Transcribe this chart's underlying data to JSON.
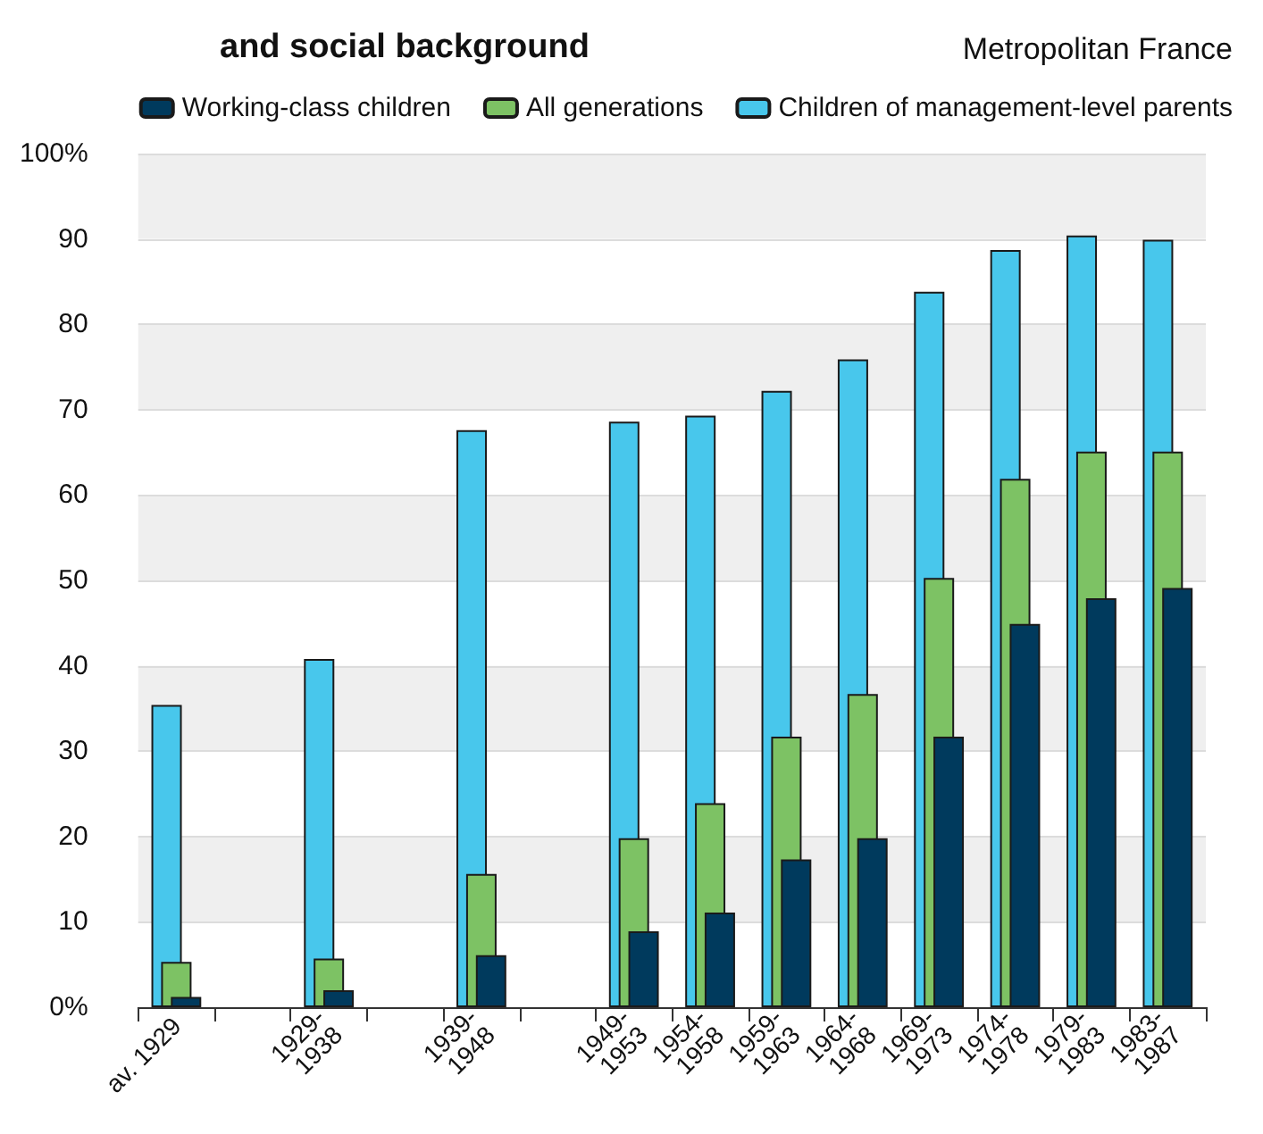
{
  "chart_data": {
    "type": "bar",
    "title": "and social background",
    "subtitle": "Metropolitan France",
    "categories": [
      "av. 1929",
      null,
      "1929-1938",
      null,
      "1939-1948",
      null,
      "1949-1953",
      "1954-1958",
      "1959-1963",
      "1964-1968",
      "1969-1973",
      "1974-1978",
      "1979-1983",
      "1983-1987"
    ],
    "series": [
      {
        "name": "Working-class children",
        "color": "#003a5d",
        "values": [
          1.2,
          null,
          2.0,
          null,
          6.1,
          null,
          8.9,
          11.1,
          17.3,
          19.8,
          31.7,
          44.9,
          47.9,
          49.1
        ]
      },
      {
        "name": "All generations",
        "color": "#7dc264",
        "values": [
          5.3,
          null,
          5.7,
          null,
          15.6,
          null,
          19.8,
          23.9,
          31.7,
          36.7,
          50.3,
          61.9,
          65.1,
          65.1
        ]
      },
      {
        "name": "Children of management-level parents",
        "color": "#48c7ec",
        "values": [
          35.4,
          null,
          40.8,
          null,
          67.6,
          null,
          68.6,
          69.3,
          72.2,
          75.9,
          83.8,
          88.7,
          90.4,
          89.9
        ]
      }
    ],
    "ylim": [
      0,
      100
    ],
    "yticks": [
      {
        "value": 0,
        "label": "0%"
      },
      10,
      20,
      30,
      40,
      50,
      60,
      70,
      80,
      90,
      {
        "value": 100,
        "label": "100%"
      }
    ],
    "grid": "y",
    "legend": "top"
  }
}
